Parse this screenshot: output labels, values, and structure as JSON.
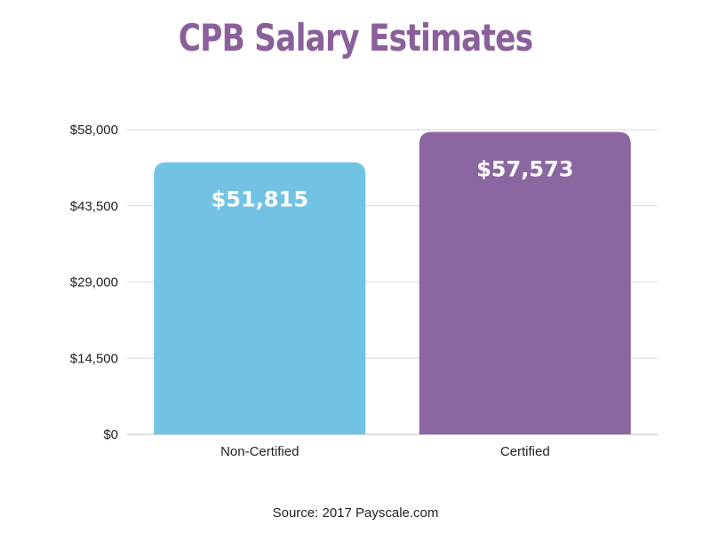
{
  "chart_data": {
    "type": "bar",
    "title": "CPB Salary Estimates",
    "categories": [
      "Non-Certified",
      "Certified"
    ],
    "values": [
      51815,
      57573
    ],
    "value_labels": [
      "$51,815",
      "$57,573"
    ],
    "bar_colors": [
      "#72c3e3",
      "#8a67a0"
    ],
    "yticks": [
      0,
      14500,
      29000,
      43500,
      58000
    ],
    "ytick_labels": [
      "$0",
      "$14,500",
      "$29,000",
      "$43,500",
      "$58,000"
    ],
    "ylim": [
      0,
      58000
    ],
    "xlabel": "",
    "ylabel": "",
    "grid": true,
    "source": "Source: 2017 Payscale.com"
  },
  "colors": {
    "title": "#8a5f9a",
    "grid": "#d9d9d9",
    "text": "#222222"
  }
}
